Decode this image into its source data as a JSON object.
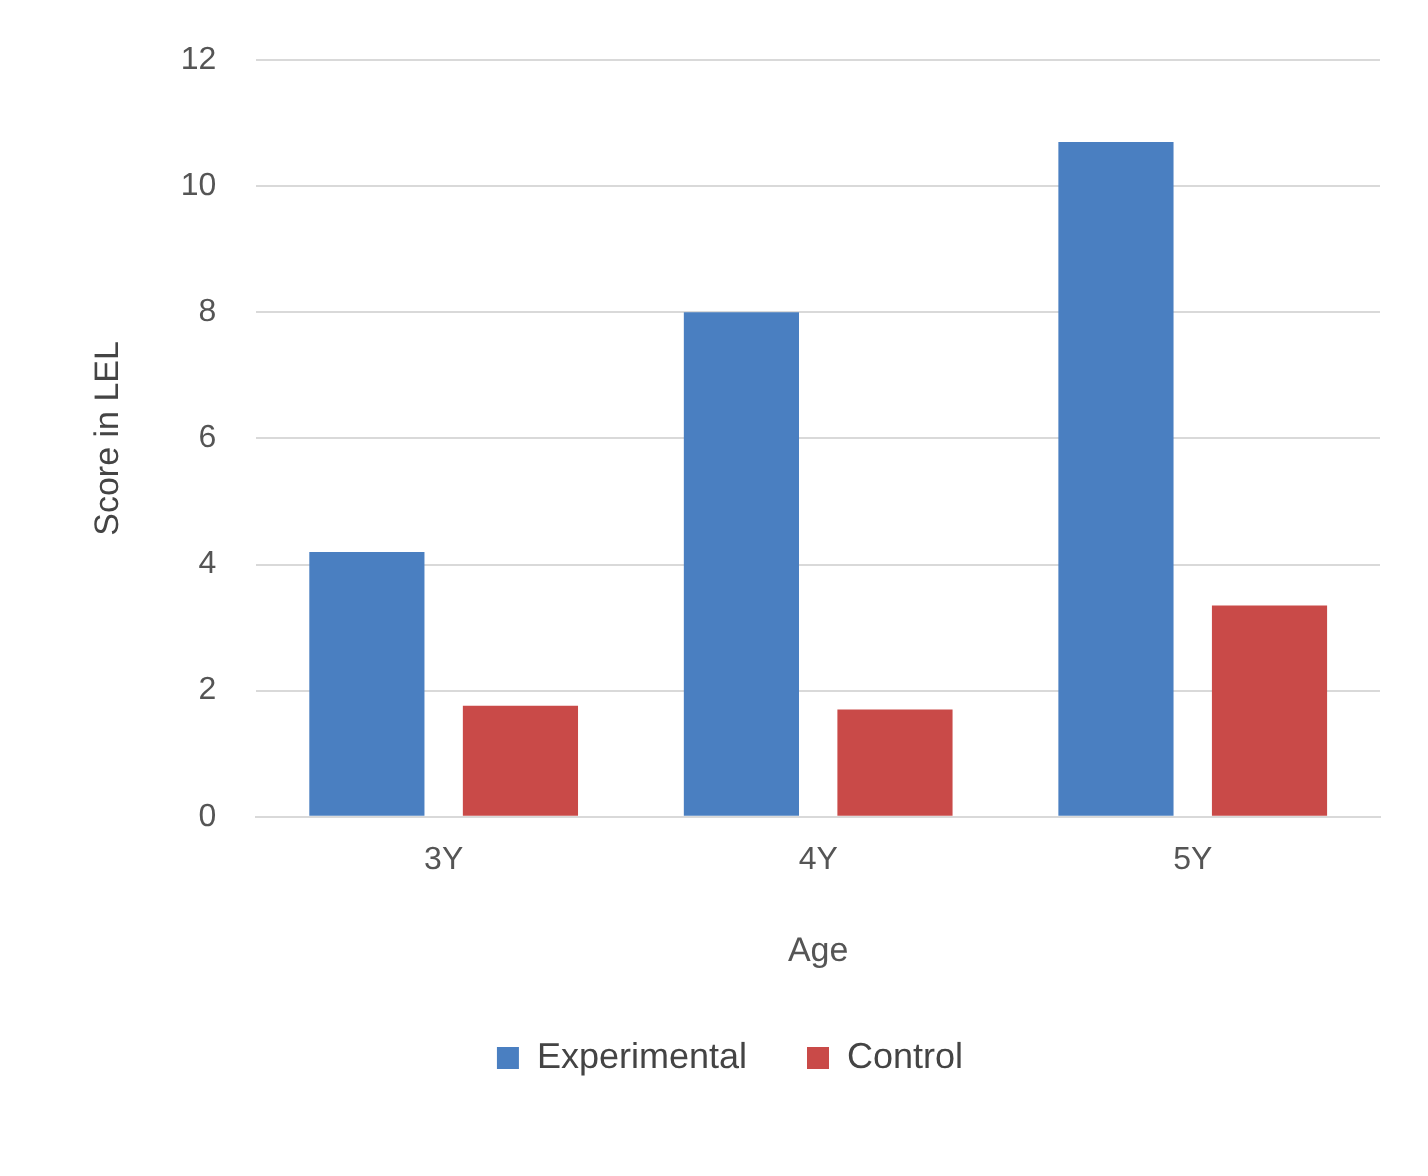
{
  "chart_data": {
    "type": "bar",
    "xlabel": "Age",
    "ylabel": "Score in LEL",
    "categories": [
      "3Y",
      "4Y",
      "5Y"
    ],
    "series": [
      {
        "name": "Experimental",
        "color": "#4a7fc1",
        "values": [
          4.2,
          8.0,
          10.7
        ]
      },
      {
        "name": "Control",
        "color": "#c94a48",
        "values": [
          1.76,
          1.7,
          3.35
        ]
      }
    ],
    "ylim": [
      0,
      12
    ],
    "yticks": [
      0,
      2,
      4,
      6,
      8,
      10,
      12
    ],
    "grid": "y",
    "legend": "bottom"
  }
}
